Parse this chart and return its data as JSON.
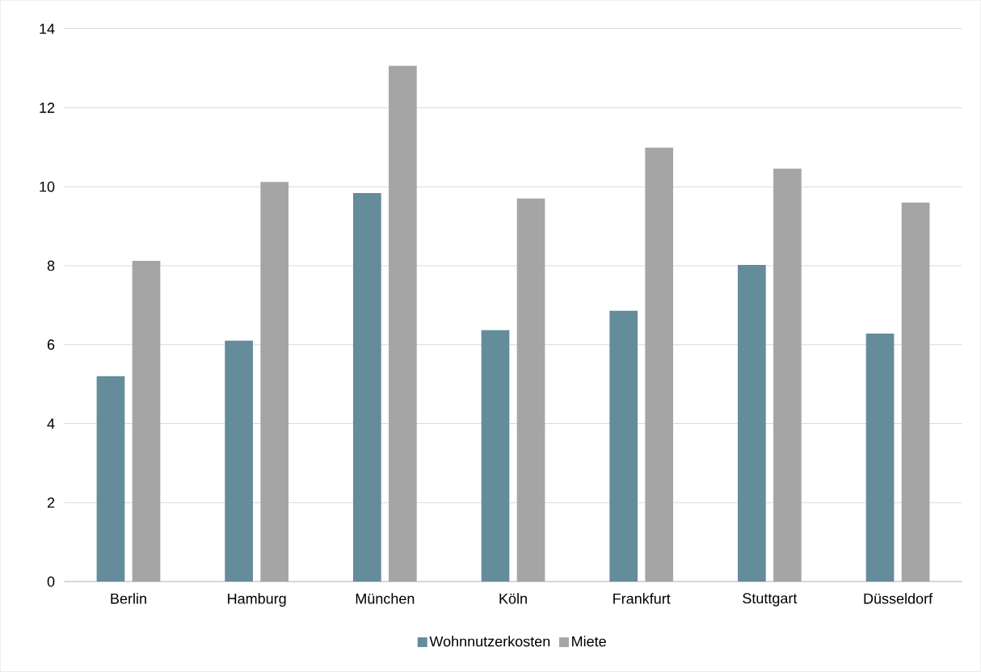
{
  "chart_data": {
    "type": "bar",
    "categories": [
      "Berlin",
      "Hamburg",
      "München",
      "Köln",
      "Frankfurt",
      "Stuttgart",
      "Düsseldorf"
    ],
    "series": [
      {
        "name": "Wohnnutzerkosten",
        "color": "#648c9b",
        "values": [
          5.2,
          6.1,
          9.84,
          6.37,
          6.86,
          8.02,
          6.28
        ]
      },
      {
        "name": "Miete",
        "color": "#a5a5a5",
        "values": [
          8.12,
          10.12,
          13.06,
          9.7,
          10.99,
          10.46,
          9.6
        ]
      }
    ],
    "ylim": [
      0,
      14
    ],
    "yticks": [
      0,
      2,
      4,
      6,
      8,
      10,
      12,
      14
    ],
    "grid": "y",
    "legend": "bottom"
  }
}
